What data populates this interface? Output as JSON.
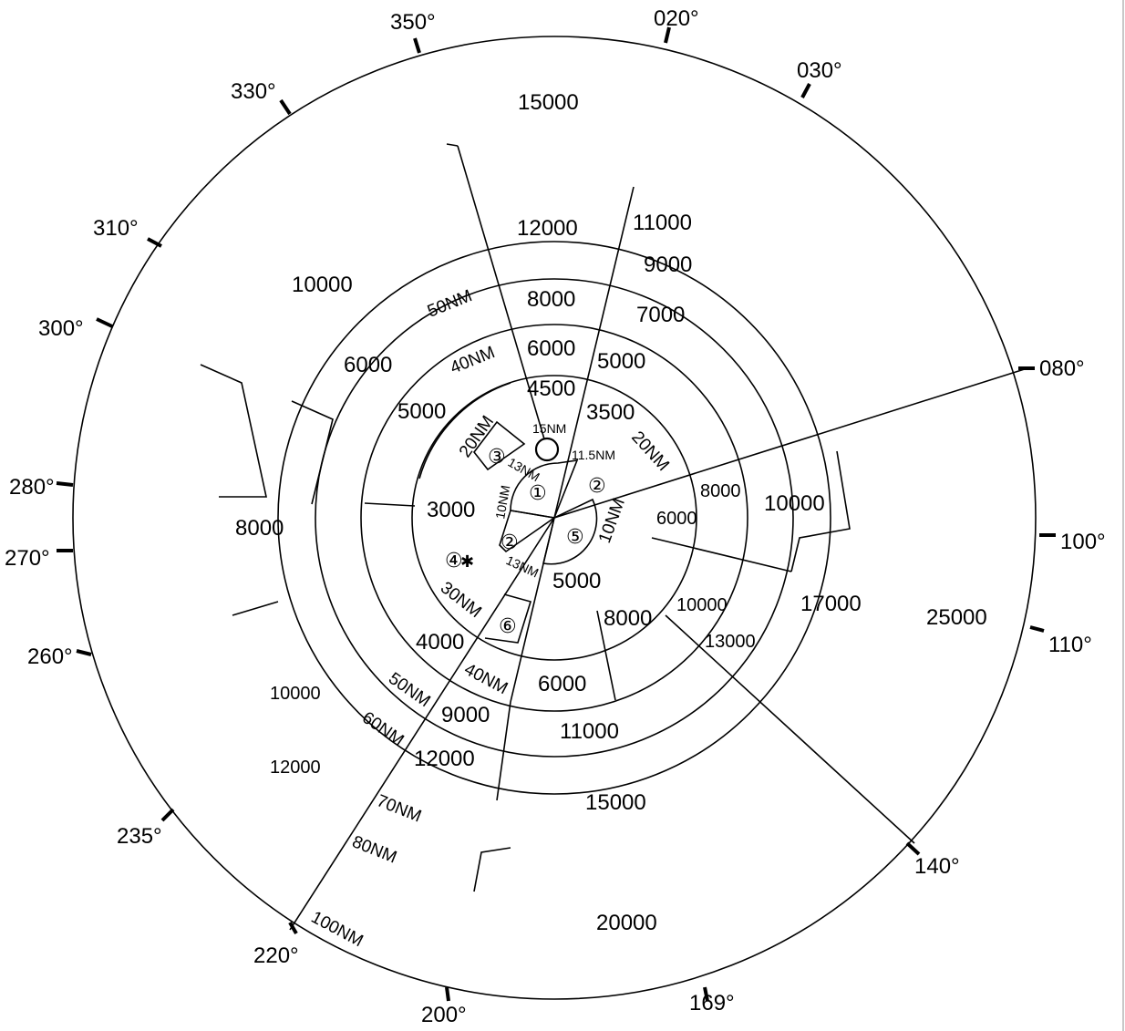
{
  "diagram": {
    "bearings": [
      "350°",
      "020°",
      "030°",
      "330°",
      "310°",
      "300°",
      "080°",
      "280°",
      "270°",
      "100°",
      "260°",
      "110°",
      "235°",
      "140°",
      "220°",
      "200°",
      "169°"
    ],
    "altitudes": [
      "15000",
      "12000",
      "11000",
      "9000",
      "10000",
      "8000",
      "7000",
      "6000",
      "5000",
      "6000",
      "4500",
      "5000",
      "3500",
      "3000",
      "8000",
      "8000",
      "10000",
      "6000",
      "5000",
      "17000",
      "25000",
      "8000",
      "10000",
      "13000",
      "4000",
      "6000",
      "9000",
      "11000",
      "10000",
      "12000",
      "12000",
      "15000",
      "20000"
    ],
    "distances": [
      "50NM",
      "40NM",
      "20NM",
      "15NM",
      "13NM",
      "11.5NM",
      "20NM",
      "10NM",
      "10NM",
      "13NM",
      "30NM",
      "40NM",
      "50NM",
      "60NM",
      "70NM",
      "80NM",
      "100NM"
    ],
    "sector_numbers": [
      "③",
      "①",
      "②",
      "②",
      "⑤",
      "④",
      "⑥"
    ],
    "airport_symbol": "✱"
  }
}
